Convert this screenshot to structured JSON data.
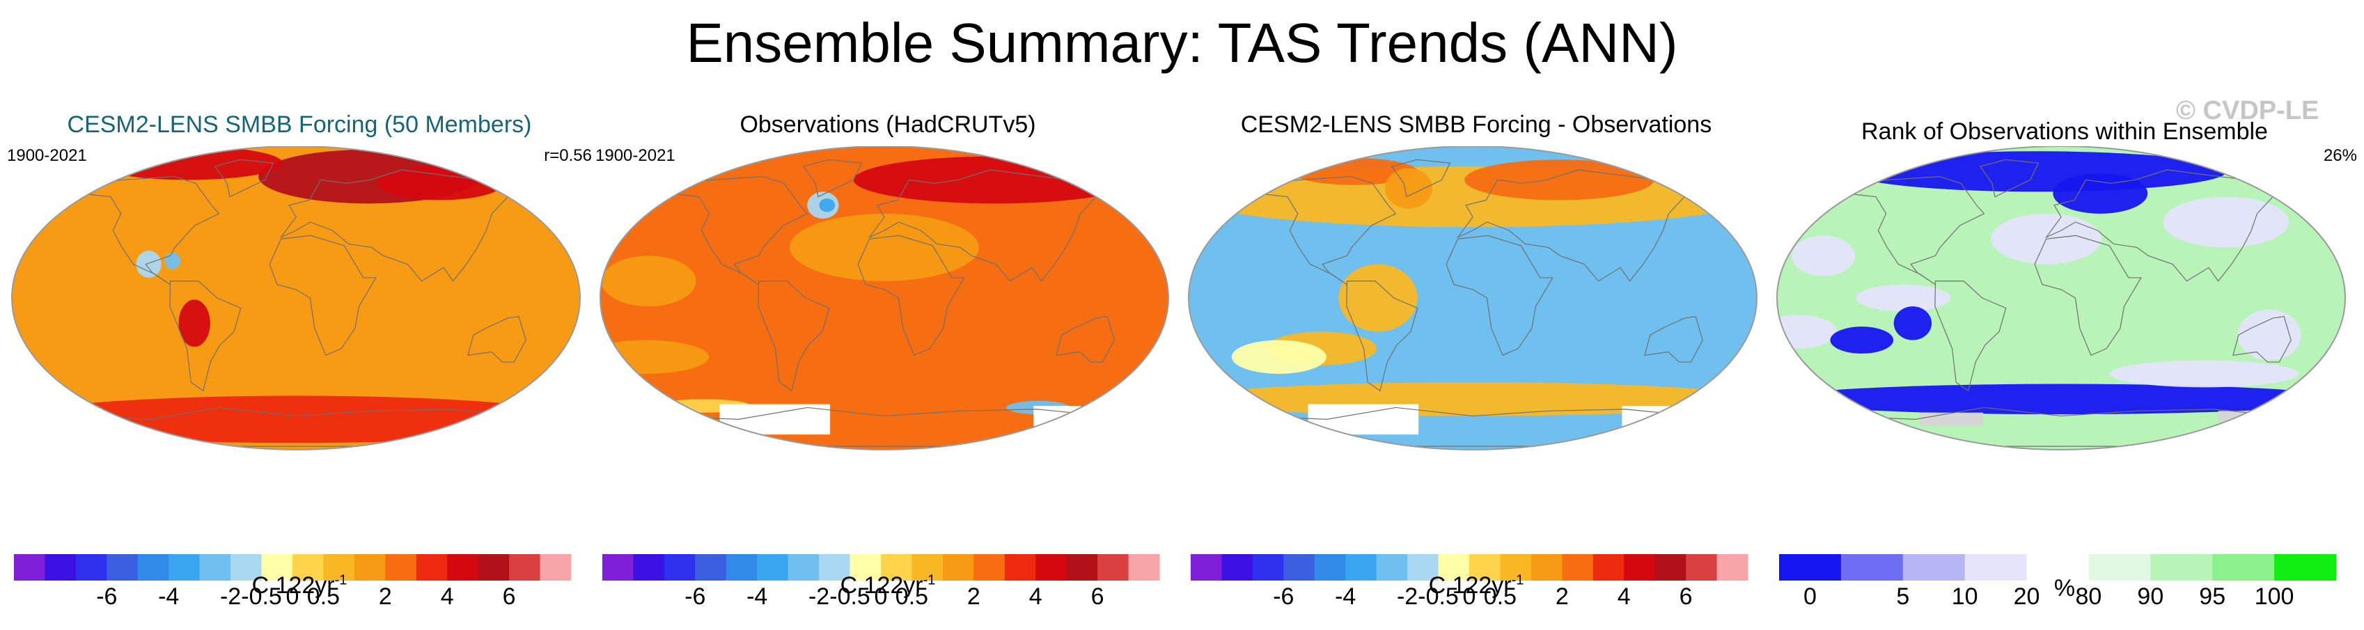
{
  "title": "Ensemble Summary: TAS Trends (ANN)",
  "watermark": "© CVDP-LE",
  "colors": {
    "temp_scale": [
      "#7f1fd8",
      "#3b11e6",
      "#2e32ef",
      "#3c5ee0",
      "#2f8ae8",
      "#3aa6ef",
      "#6fc0ef",
      "#a9d8f2",
      "#ffffa8",
      "#ffd34a",
      "#f9b823",
      "#f79b14",
      "#f66d12",
      "#ee2a0f",
      "#d50810",
      "#b3111a",
      "#d9403f",
      "#f7a5a8"
    ],
    "rank_scale": [
      "#1616f0",
      "#6e6ef5",
      "#b6b6f5",
      "#e4e4fa",
      "#ffffff",
      "#e2fae2",
      "#b8f4b8",
      "#8cf08c",
      "#11ee11"
    ],
    "land_outline": "#707070",
    "missing": "#ffffff"
  },
  "chart_data": [
    {
      "type": "heatmap",
      "title": "CESM2-LENS SMBB Forcing (50 Members)",
      "title_color": "#15647a",
      "period": "1900-2021",
      "annotation": "r=0.56",
      "colorbar_label": "C 122yr",
      "colorbar_exponent": "-1",
      "tick_labels": [
        "-6",
        "-4",
        "-2",
        "-0.5",
        "0",
        "0.5",
        "2",
        "4",
        "6"
      ],
      "levels": [
        -7,
        -6,
        -5,
        -4,
        -3,
        -2,
        -1,
        -0.5,
        -0.25,
        0,
        0.25,
        0.5,
        1,
        2,
        3,
        4,
        5,
        6,
        7
      ],
      "background_value": 0.9,
      "features": [
        {
          "lon": 60,
          "lat": 72,
          "rx": 70,
          "ry": 16,
          "value": 4
        },
        {
          "lon": 115,
          "lat": 68,
          "rx": 40,
          "ry": 10,
          "value": 3
        },
        {
          "lon": -95,
          "lat": 80,
          "rx": 60,
          "ry": 10,
          "value": 3
        },
        {
          "lon": -40,
          "lat": 40,
          "rx": 40,
          "ry": 25,
          "value": 0.5
        },
        {
          "lon": -65,
          "lat": -15,
          "rx": 10,
          "ry": 14,
          "value": 3
        },
        {
          "lon": -95,
          "lat": 20,
          "rx": 8,
          "ry": 8,
          "value": -0.3
        },
        {
          "lon": -80,
          "lat": 22,
          "rx": 5,
          "ry": 5,
          "value": -1
        },
        {
          "lon": 0,
          "lat": -72,
          "rx": 180,
          "ry": 14,
          "value": 2
        }
      ]
    },
    {
      "type": "heatmap",
      "title": "Observations (HadCRUTv5)",
      "title_color": "#000000",
      "period": "1900-2021",
      "annotation": "",
      "colorbar_label": "C 122yr",
      "colorbar_exponent": "-1",
      "tick_labels": [
        "-6",
        "-4",
        "-2",
        "-0.5",
        "0",
        "0.5",
        "2",
        "4",
        "6"
      ],
      "levels": [
        -7,
        -6,
        -5,
        -4,
        -3,
        -2,
        -1,
        -0.5,
        -0.25,
        0,
        0.25,
        0.5,
        1,
        2,
        3,
        4,
        5,
        6,
        7
      ],
      "background_value": 1.2,
      "features": [
        {
          "lon": 90,
          "lat": 70,
          "rx": 90,
          "ry": 14,
          "value": 3
        },
        {
          "lon": 0,
          "lat": 30,
          "rx": 60,
          "ry": 20,
          "value": 0.6
        },
        {
          "lon": -150,
          "lat": 10,
          "rx": 30,
          "ry": 15,
          "value": 0.6
        },
        {
          "lon": -45,
          "lat": 55,
          "rx": 10,
          "ry": 8,
          "value": -0.3
        },
        {
          "lon": -42,
          "lat": 55,
          "rx": 5,
          "ry": 4,
          "value": -1.5
        },
        {
          "lon": -160,
          "lat": -35,
          "rx": 40,
          "ry": 10,
          "value": 0.6
        },
        {
          "lon": 120,
          "lat": -65,
          "rx": 20,
          "ry": 4,
          "value": -1
        },
        {
          "lon": -140,
          "lat": -64,
          "rx": 30,
          "ry": 4,
          "value": 0.2
        }
      ],
      "missing": [
        {
          "lon": -90,
          "lat": -72,
          "rx": 35,
          "ry": 9
        },
        {
          "lon": 140,
          "lat": -70,
          "rx": 15,
          "ry": 6
        }
      ]
    },
    {
      "type": "heatmap",
      "title": "CESM2-LENS SMBB Forcing - Observations",
      "title_color": "#000000",
      "period": "",
      "annotation": "",
      "colorbar_label": "C 122yr",
      "colorbar_exponent": "-1",
      "tick_labels": [
        "-6",
        "-4",
        "-2",
        "-0.5",
        "0",
        "0.5",
        "2",
        "4",
        "6"
      ],
      "levels": [
        -7,
        -6,
        -5,
        -4,
        -3,
        -2,
        -1,
        -0.5,
        -0.25,
        0,
        0.25,
        0.5,
        1,
        2,
        3,
        4,
        5,
        6,
        7
      ],
      "background_value": -0.6,
      "features": [
        {
          "lon": 0,
          "lat": 60,
          "rx": 180,
          "ry": 18,
          "value": 0.3
        },
        {
          "lon": 70,
          "lat": 70,
          "rx": 60,
          "ry": 12,
          "value": 1.2
        },
        {
          "lon": -100,
          "lat": 75,
          "rx": 40,
          "ry": 8,
          "value": 1.2
        },
        {
          "lon": -50,
          "lat": 65,
          "rx": 15,
          "ry": 12,
          "value": 0.6
        },
        {
          "lon": -60,
          "lat": 0,
          "rx": 25,
          "ry": 20,
          "value": 0.3
        },
        {
          "lon": -100,
          "lat": -30,
          "rx": 35,
          "ry": 10,
          "value": 0.3
        },
        {
          "lon": -130,
          "lat": -35,
          "rx": 30,
          "ry": 10,
          "value": -0.2
        },
        {
          "lon": 0,
          "lat": -60,
          "rx": 180,
          "ry": 10,
          "value": 0.3
        }
      ],
      "missing": [
        {
          "lon": -90,
          "lat": -72,
          "rx": 35,
          "ry": 9
        },
        {
          "lon": 140,
          "lat": -70,
          "rx": 15,
          "ry": 6
        }
      ]
    },
    {
      "type": "heatmap",
      "title": "Rank of Observations within Ensemble",
      "title_color": "#000000",
      "period": "",
      "annotation": "26%",
      "colorbar_label": "%",
      "colorbar_exponent": "",
      "tick_labels": [
        "0",
        "5",
        "10",
        "20",
        "80",
        "90",
        "95",
        "100"
      ],
      "levels": [
        0,
        5,
        10,
        20,
        80,
        90,
        95,
        100
      ],
      "background_value": 97,
      "features": [
        {
          "lon": -20,
          "lat": 75,
          "rx": 120,
          "ry": 12,
          "value": 3
        },
        {
          "lon": 30,
          "lat": 62,
          "rx": 30,
          "ry": 12,
          "value": 3
        },
        {
          "lon": -155,
          "lat": 25,
          "rx": 20,
          "ry": 12,
          "value": 50
        },
        {
          "lon": -10,
          "lat": 35,
          "rx": 35,
          "ry": 15,
          "value": 50
        },
        {
          "lon": 115,
          "lat": 45,
          "rx": 40,
          "ry": 15,
          "value": 50
        },
        {
          "lon": -100,
          "lat": 0,
          "rx": 30,
          "ry": 8,
          "value": 50
        },
        {
          "lon": -170,
          "lat": -20,
          "rx": 25,
          "ry": 10,
          "value": 50
        },
        {
          "lon": -130,
          "lat": -25,
          "rx": 20,
          "ry": 8,
          "value": 3
        },
        {
          "lon": -95,
          "lat": -15,
          "rx": 12,
          "ry": 10,
          "value": 3
        },
        {
          "lon": 135,
          "lat": -22,
          "rx": 20,
          "ry": 15,
          "value": 50
        },
        {
          "lon": 0,
          "lat": -60,
          "rx": 180,
          "ry": 9,
          "value": 3
        },
        {
          "lon": 100,
          "lat": -45,
          "rx": 60,
          "ry": 8,
          "value": 50
        }
      ],
      "missing": [
        {
          "lon": -90,
          "lat": -72,
          "rx": 20,
          "ry": 4
        },
        {
          "lon": 140,
          "lat": -70,
          "rx": 10,
          "ry": 3
        }
      ]
    }
  ]
}
